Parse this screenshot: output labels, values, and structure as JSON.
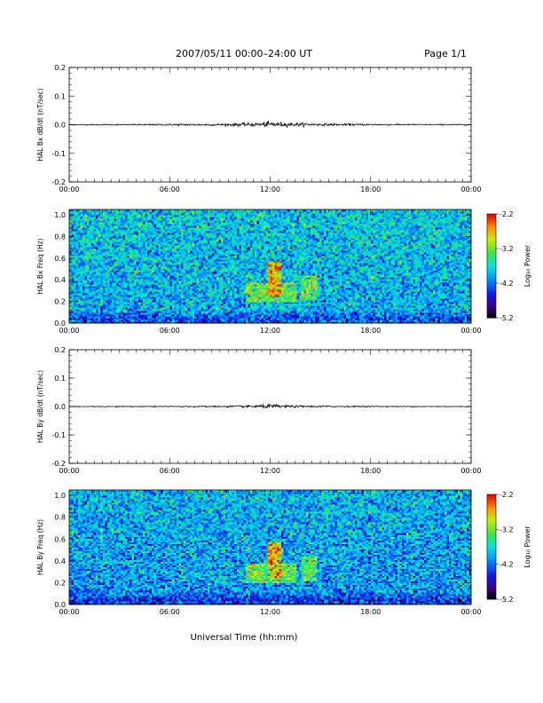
{
  "header": {
    "title": "2007/05/11  00:00–24:00 UT",
    "page": "Page 1/1"
  },
  "xlabel": "Universal Time (hh:mm)",
  "chart_data": [
    {
      "type": "line",
      "ylabel": "HAL Bx dB/dt (nT/sec)",
      "x_ticks": [
        "00:00",
        "06:00",
        "12:00",
        "18:00",
        "00:00"
      ],
      "xlim": [
        0,
        24
      ],
      "ylim": [
        -0.2,
        0.2
      ],
      "y_ticks": [
        "0.2",
        "0.1",
        "0.0",
        "-0.1",
        "-0.2"
      ],
      "series": [
        {
          "x": [
            0,
            3,
            6,
            9,
            10.5,
            11.5,
            12,
            12.5,
            13.5,
            15,
            18,
            21,
            24
          ],
          "values": [
            0,
            0,
            0,
            0,
            0.002,
            0.004,
            0.006,
            0.005,
            0.003,
            0.002,
            0.001,
            0.001,
            0
          ]
        }
      ],
      "envelope": {
        "x": [
          0,
          3,
          6,
          9,
          10.5,
          11.5,
          12,
          12.5,
          13.5,
          15,
          18,
          21,
          24
        ],
        "amplitude": [
          0.001,
          0.001,
          0.0015,
          0.002,
          0.003,
          0.004,
          0.005,
          0.004,
          0.003,
          0.002,
          0.0015,
          0.001,
          0.001
        ]
      }
    },
    {
      "type": "heatmap",
      "ylabel": "HAL Bx Freq (Hz)",
      "x_ticks": [
        "00:00",
        "06:00",
        "12:00",
        "18:00",
        "00:00"
      ],
      "xlim": [
        0,
        24
      ],
      "ylim": [
        0,
        1.05
      ],
      "y_ticks": [
        "1.0",
        "0.8",
        "0.6",
        "0.4",
        "0.2",
        "0.0"
      ],
      "colorbar": {
        "label": "Log₁₀ Power",
        "ticks": [
          "-2.2",
          "-3.2",
          "-4.2",
          "-5.2"
        ],
        "range": [
          -5.2,
          -2.2
        ]
      },
      "background_level": -3.9,
      "low_freq_level": -4.6,
      "events": [
        {
          "t_start": 10.5,
          "t_end": 13.6,
          "f_low": 0.2,
          "f_high": 0.38,
          "level": -3.3
        },
        {
          "t_start": 11.8,
          "t_end": 12.7,
          "f_low": 0.25,
          "f_high": 0.58,
          "level": -2.7
        },
        {
          "t_start": 13.8,
          "t_end": 14.8,
          "f_low": 0.22,
          "f_high": 0.45,
          "level": -3.3
        }
      ]
    },
    {
      "type": "line",
      "ylabel": "HAL By dB/dt (nT/sec)",
      "x_ticks": [
        "00:00",
        "06:00",
        "12:00",
        "18:00",
        "00:00"
      ],
      "xlim": [
        0,
        24
      ],
      "ylim": [
        -0.2,
        0.2
      ],
      "y_ticks": [
        "0.2",
        "0.1",
        "0.0",
        "-0.1",
        "-0.2"
      ],
      "series": [
        {
          "x": [
            0,
            3,
            6,
            9,
            10.5,
            11.5,
            12,
            12.5,
            13.5,
            15,
            18,
            21,
            24
          ],
          "values": [
            0,
            0,
            0,
            0,
            0.001,
            0.002,
            0.003,
            0.002,
            0.002,
            0.001,
            0.001,
            0,
            0
          ]
        }
      ],
      "envelope": {
        "x": [
          0,
          3,
          6,
          9,
          10.5,
          11.5,
          12,
          12.5,
          13.5,
          15,
          18,
          21,
          24
        ],
        "amplitude": [
          0.0008,
          0.0008,
          0.001,
          0.0015,
          0.002,
          0.003,
          0.004,
          0.003,
          0.002,
          0.0015,
          0.001,
          0.0008,
          0.0008
        ]
      }
    },
    {
      "type": "heatmap",
      "ylabel": "HAL By Freq (Hz)",
      "x_ticks": [
        "00:00",
        "06:00",
        "12:00",
        "18:00",
        "00:00"
      ],
      "xlim": [
        0,
        24
      ],
      "ylim": [
        0,
        1.05
      ],
      "y_ticks": [
        "1.0",
        "0.8",
        "0.6",
        "0.4",
        "0.2",
        "0.0"
      ],
      "colorbar": {
        "label": "Log₁₀ Power",
        "ticks": [
          "-2.2",
          "-3.2",
          "-4.2",
          "-5.2"
        ],
        "range": [
          -5.2,
          -2.2
        ]
      },
      "background_level": -4.0,
      "low_freq_level": -4.7,
      "events": [
        {
          "t_start": 10.5,
          "t_end": 13.6,
          "f_low": 0.2,
          "f_high": 0.38,
          "level": -3.3
        },
        {
          "t_start": 11.8,
          "t_end": 12.7,
          "f_low": 0.25,
          "f_high": 0.58,
          "level": -2.7
        },
        {
          "t_start": 13.8,
          "t_end": 14.8,
          "f_low": 0.22,
          "f_high": 0.45,
          "level": -3.3
        }
      ]
    }
  ]
}
